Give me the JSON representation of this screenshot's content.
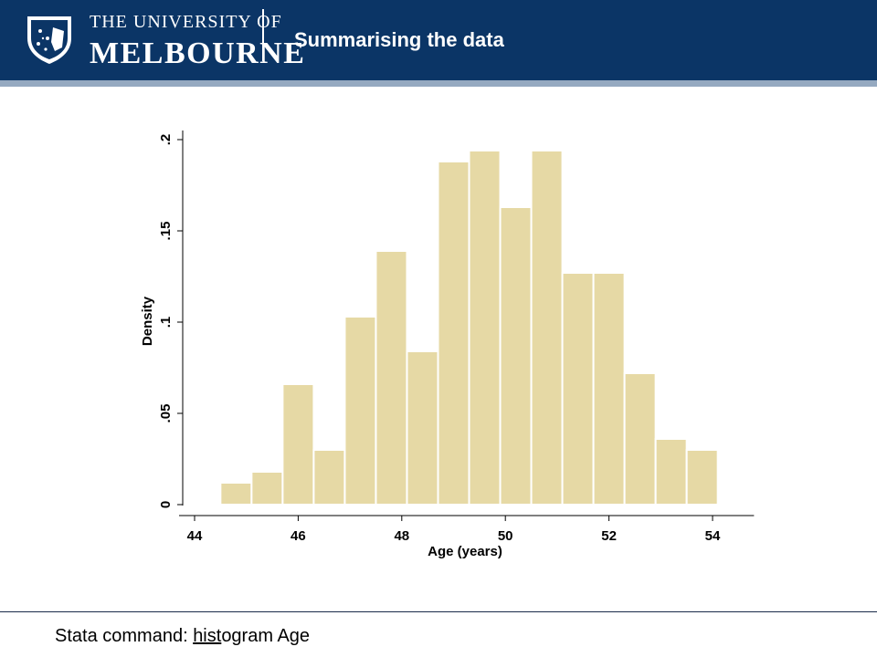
{
  "header": {
    "logo_line1": "THE UNIVERSITY OF",
    "logo_line2": "MELBOURNE",
    "title": "Summarising the data"
  },
  "colors": {
    "header_bg": "#0b3566",
    "header_accent": "#95a9c0",
    "bar_fill": "#e6d9a5"
  },
  "chart_data": {
    "type": "bar",
    "title": "",
    "xlabel": "Age (years)",
    "ylabel": "Density",
    "xlim": [
      43.7,
      54.8
    ],
    "ylim": [
      0,
      0.2
    ],
    "xticks": [
      44,
      46,
      48,
      50,
      52,
      54
    ],
    "yticks": [
      0,
      0.05,
      0.1,
      0.15,
      0.2
    ],
    "ytick_labels": [
      "0",
      ".05",
      ".1",
      ".15",
      ".2"
    ],
    "bins": [
      {
        "x0": 44.5,
        "x1": 45.1,
        "value": 0.012
      },
      {
        "x0": 45.1,
        "x1": 45.7,
        "value": 0.018
      },
      {
        "x0": 45.7,
        "x1": 46.3,
        "value": 0.066
      },
      {
        "x0": 46.3,
        "x1": 46.9,
        "value": 0.03
      },
      {
        "x0": 46.9,
        "x1": 47.5,
        "value": 0.103
      },
      {
        "x0": 47.5,
        "x1": 48.1,
        "value": 0.139
      },
      {
        "x0": 48.1,
        "x1": 48.7,
        "value": 0.084
      },
      {
        "x0": 48.7,
        "x1": 49.3,
        "value": 0.188
      },
      {
        "x0": 49.3,
        "x1": 49.9,
        "value": 0.194
      },
      {
        "x0": 49.9,
        "x1": 50.5,
        "value": 0.163
      },
      {
        "x0": 50.5,
        "x1": 51.1,
        "value": 0.194
      },
      {
        "x0": 51.1,
        "x1": 51.7,
        "value": 0.127
      },
      {
        "x0": 51.7,
        "x1": 52.3,
        "value": 0.127
      },
      {
        "x0": 52.3,
        "x1": 52.9,
        "value": 0.072
      },
      {
        "x0": 52.9,
        "x1": 53.5,
        "value": 0.036
      },
      {
        "x0": 53.5,
        "x1": 54.1,
        "value": 0.03
      }
    ],
    "grid": false
  },
  "footer": {
    "prefix": "Stata command: ",
    "underlined": "hist",
    "rest": "ogram Age"
  }
}
